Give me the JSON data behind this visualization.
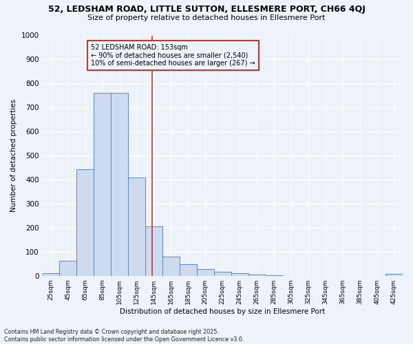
{
  "title1": "52, LEDSHAM ROAD, LITTLE SUTTON, ELLESMERE PORT, CH66 4QJ",
  "title2": "Size of property relative to detached houses in Ellesmere Port",
  "xlabel": "Distribution of detached houses by size in Ellesmere Port",
  "ylabel": "Number of detached properties",
  "bin_starts": [
    25,
    45,
    65,
    85,
    105,
    125,
    145,
    165,
    185,
    205,
    225,
    245,
    265,
    285,
    305,
    325,
    345,
    365,
    385,
    405,
    425
  ],
  "bin_values": [
    10,
    63,
    443,
    762,
    762,
    410,
    205,
    78,
    47,
    28,
    15,
    10,
    5,
    2,
    0,
    0,
    0,
    0,
    0,
    0,
    8
  ],
  "bar_color": "#cddaf0",
  "bar_edge_color": "#5a87c5",
  "vline_x": 153,
  "vline_color": "#c0392b",
  "annotation_line1": "52 LEDSHAM ROAD: 153sqm",
  "annotation_line2": "← 90% of detached houses are smaller (2,540)",
  "annotation_line3": "10% of semi-detached houses are larger (267) →",
  "ylim": [
    0,
    1000
  ],
  "yticks": [
    0,
    100,
    200,
    300,
    400,
    500,
    600,
    700,
    800,
    900,
    1000
  ],
  "background_color": "#eef2fa",
  "grid_color": "#ffffff",
  "footer_text": "Contains HM Land Registry data © Crown copyright and database right 2025.\nContains public sector information licensed under the Open Government Licence v3.0.",
  "bin_width": 20,
  "xlim_left": 25,
  "xlim_right": 445
}
